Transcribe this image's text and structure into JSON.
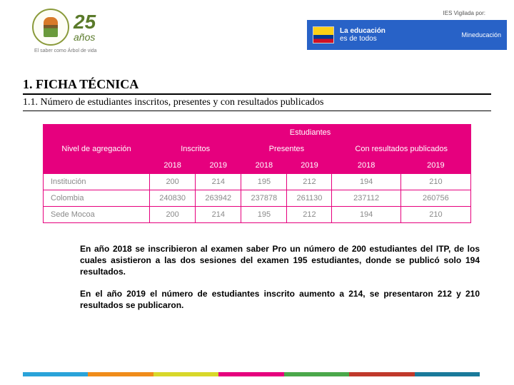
{
  "logo": {
    "number": "25",
    "years": "años",
    "motto": "El saber como Árbol de vida"
  },
  "gov": {
    "supervised": "IES Vigilada por:",
    "slogan_l1": "La educación",
    "slogan_l2": "es de todos",
    "ministry": "Mineducación"
  },
  "section": {
    "title": "1. FICHA TÉCNICA",
    "subtitle": "1.1. Número de estudiantes inscritos, presentes y con resultados publicados"
  },
  "table": {
    "header_top_col1": "Nivel de agregación",
    "header_top_col2": "Estudiantes",
    "groups": [
      "Inscritos",
      "Presentes",
      "Con resultados publicados"
    ],
    "years": [
      "2018",
      "2019",
      "2018",
      "2019",
      "2018",
      "2019"
    ],
    "rows": [
      {
        "label": "Institución",
        "cells": [
          "200",
          "214",
          "195",
          "212",
          "194",
          "210"
        ]
      },
      {
        "label": "Colombia",
        "cells": [
          "240830",
          "263942",
          "237878",
          "261130",
          "237112",
          "260756"
        ]
      },
      {
        "label": "Sede Mocoa",
        "cells": [
          "200",
          "214",
          "195",
          "212",
          "194",
          "210"
        ]
      }
    ],
    "colors": {
      "accent": "#e6007e",
      "cell_text": "#8a8a8a"
    }
  },
  "paragraphs": {
    "p1": "En año 2018 se inscribieron al examen saber Pro un número de 200 estudiantes del ITP, de los cuales asistieron a las dos sesiones del examen 195 estudiantes, donde se publicó solo 194 resultados.",
    "p2": "En el año 2019 el número de estudiantes inscrito aumento a 214, se presentaron 212 y 210 resultados se publicaron."
  },
  "footer_colors": [
    "#2aa3d9",
    "#f08c1a",
    "#d8d82a",
    "#e6007e",
    "#4aa84a",
    "#c0392b",
    "#1a7a9a"
  ]
}
